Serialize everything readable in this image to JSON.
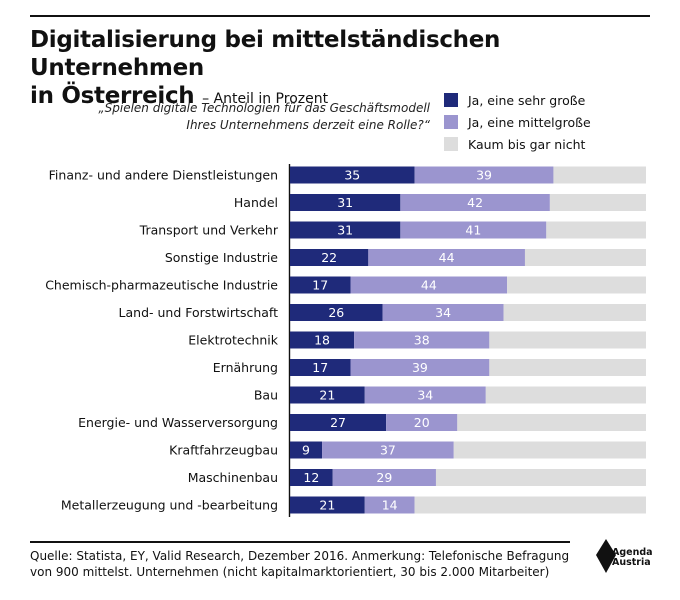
{
  "header": {
    "title": "Digitalisierung bei mittelständischen Unternehmen",
    "title_line2": "in Österreich",
    "subtitle": "– Anteil in Prozent"
  },
  "question": {
    "line1": "„Spielen digitale Technologien für das Geschäftsmodell",
    "line2": "Ihres Unternehmens derzeit eine Rolle?“"
  },
  "legend": [
    {
      "label": "Ja, eine sehr große",
      "color": "#1f2a7a"
    },
    {
      "label": "Ja, eine mittelgroße",
      "color": "#9b95cf"
    },
    {
      "label": "Kaum bis gar nicht",
      "color": "#dddddd"
    }
  ],
  "chart_data": {
    "type": "bar",
    "orientation": "horizontal",
    "stacked": true,
    "categories": [
      "Finanz- und andere Dienstleistungen",
      "Handel",
      "Transport und Verkehr",
      "Sonstige Industrie",
      "Chemisch-pharmazeutische Industrie",
      "Land- und Forstwirtschaft",
      "Elektrotechnik",
      "Ernährung",
      "Bau",
      "Energie- und Wasserversorgung",
      "Kraftfahrzeugbau",
      "Maschinenbau",
      "Metallerzeugung und -bearbeitung"
    ],
    "series": [
      {
        "name": "Ja, eine sehr große",
        "color": "#1f2a7a",
        "values": [
          35,
          31,
          31,
          22,
          17,
          26,
          18,
          17,
          21,
          27,
          9,
          12,
          21
        ]
      },
      {
        "name": "Ja, eine mittelgroße",
        "color": "#9b95cf",
        "values": [
          39,
          42,
          41,
          44,
          44,
          34,
          38,
          39,
          34,
          20,
          37,
          29,
          14
        ]
      },
      {
        "name": "Kaum bis gar nicht",
        "color": "#dddddd",
        "values": [
          26,
          27,
          28,
          34,
          39,
          40,
          44,
          44,
          45,
          53,
          54,
          59,
          65
        ]
      }
    ],
    "xlim": [
      0,
      100
    ],
    "grid": false,
    "legend_position": "top-right"
  },
  "footer": {
    "source_line1": "Quelle: Statista, EY, Valid Research, Dezember 2016.  Anmerkung: Telefonische Befragung",
    "source_line2": "von 900 mittelst. Unternehmen (nicht kapitalmarktorientiert, 30 bis 2.000 Mitarbeiter)",
    "logo_line1": "Agenda",
    "logo_line2": "Austria"
  }
}
